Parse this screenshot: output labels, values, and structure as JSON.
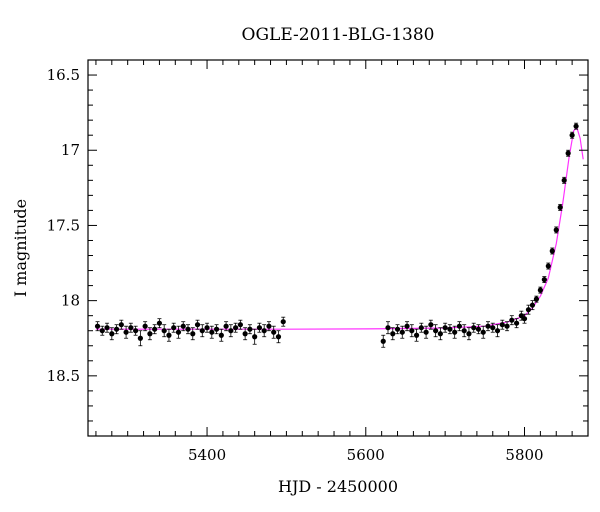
{
  "chart_data": {
    "type": "scatter",
    "title": "OGLE-2011-BLG-1380",
    "xlabel": "HJD - 2450000",
    "ylabel": "I magnitude",
    "xlim": [
      5250,
      5880
    ],
    "ylim": [
      18.9,
      16.4
    ],
    "y_inverted": true,
    "x_major_ticks": [
      5400,
      5600,
      5800
    ],
    "x_minor_step": 20,
    "y_major_ticks": [
      16.5,
      17,
      17.5,
      18,
      18.5
    ],
    "y_major_labels": [
      "16.5",
      "17",
      "17.5",
      "18",
      "18.5"
    ],
    "y_minor_step": 0.1,
    "grid": false,
    "legend": "none",
    "colors": {
      "points": "#000000",
      "model": "#ff33ff"
    },
    "series": [
      {
        "kind": "points-with-errorbars",
        "x": [
          5262,
          5268,
          5274,
          5280,
          5286,
          5292,
          5298,
          5304,
          5310,
          5316,
          5322,
          5328,
          5334,
          5340,
          5346,
          5352,
          5358,
          5364,
          5370,
          5376,
          5382,
          5388,
          5394,
          5400,
          5406,
          5412,
          5418,
          5424,
          5430,
          5436,
          5442,
          5448,
          5454,
          5460,
          5466,
          5472,
          5478,
          5484,
          5490,
          5496,
          5622,
          5628,
          5634,
          5640,
          5646,
          5652,
          5658,
          5664,
          5670,
          5676,
          5682,
          5688,
          5694,
          5700,
          5706,
          5712,
          5718,
          5724,
          5730,
          5736,
          5742,
          5748,
          5754,
          5760,
          5766,
          5772,
          5778,
          5784,
          5790,
          5796,
          5800,
          5805,
          5810,
          5815,
          5820,
          5825,
          5830,
          5835,
          5840,
          5845,
          5850,
          5855,
          5860,
          5865
        ],
        "y": [
          18.17,
          18.2,
          18.18,
          18.22,
          18.19,
          18.16,
          18.21,
          18.18,
          18.2,
          18.25,
          18.17,
          18.22,
          18.19,
          18.15,
          18.2,
          18.23,
          18.18,
          18.21,
          18.17,
          18.19,
          18.22,
          18.16,
          18.2,
          18.18,
          18.21,
          18.19,
          18.23,
          18.17,
          18.2,
          18.18,
          18.16,
          18.22,
          18.19,
          18.24,
          18.18,
          18.2,
          18.17,
          18.21,
          18.24,
          18.14,
          18.27,
          18.18,
          18.22,
          18.19,
          18.21,
          18.17,
          18.2,
          18.23,
          18.18,
          18.21,
          18.16,
          18.2,
          18.22,
          18.18,
          18.19,
          18.21,
          18.17,
          18.2,
          18.22,
          18.18,
          18.19,
          18.21,
          18.17,
          18.18,
          18.2,
          18.16,
          18.17,
          18.13,
          18.15,
          18.1,
          18.12,
          18.06,
          18.03,
          17.99,
          17.93,
          17.86,
          17.77,
          17.67,
          17.53,
          17.38,
          17.2,
          17.02,
          16.9,
          16.84
        ],
        "yerr": [
          0.03,
          0.03,
          0.03,
          0.04,
          0.03,
          0.03,
          0.04,
          0.03,
          0.03,
          0.05,
          0.03,
          0.04,
          0.03,
          0.03,
          0.04,
          0.04,
          0.03,
          0.04,
          0.03,
          0.03,
          0.04,
          0.03,
          0.04,
          0.03,
          0.04,
          0.03,
          0.04,
          0.03,
          0.04,
          0.03,
          0.03,
          0.04,
          0.03,
          0.05,
          0.03,
          0.04,
          0.03,
          0.04,
          0.04,
          0.03,
          0.04,
          0.04,
          0.04,
          0.03,
          0.04,
          0.03,
          0.04,
          0.04,
          0.03,
          0.04,
          0.03,
          0.04,
          0.04,
          0.03,
          0.03,
          0.04,
          0.03,
          0.04,
          0.04,
          0.03,
          0.03,
          0.04,
          0.03,
          0.03,
          0.04,
          0.03,
          0.03,
          0.03,
          0.03,
          0.03,
          0.03,
          0.03,
          0.03,
          0.02,
          0.02,
          0.02,
          0.02,
          0.02,
          0.02,
          0.02,
          0.02,
          0.02,
          0.02,
          0.02
        ]
      },
      {
        "kind": "model-line",
        "x": [
          5260,
          5300,
          5400,
          5500,
          5600,
          5700,
          5750,
          5780,
          5800,
          5810,
          5820,
          5830,
          5840,
          5848,
          5856,
          5862,
          5866,
          5870,
          5874
        ],
        "y": [
          18.19,
          18.19,
          18.19,
          18.19,
          18.188,
          18.182,
          18.17,
          18.14,
          18.1,
          18.05,
          17.97,
          17.85,
          17.62,
          17.36,
          17.05,
          16.87,
          16.85,
          16.92,
          17.06
        ]
      }
    ]
  }
}
